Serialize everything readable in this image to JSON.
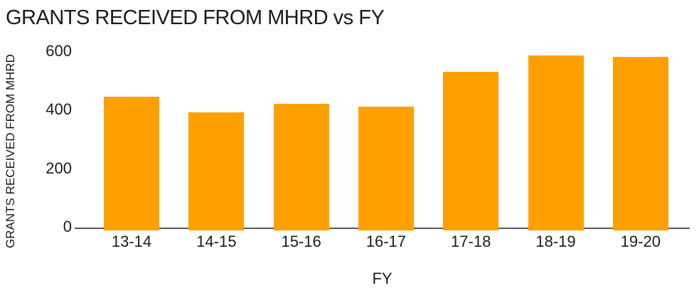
{
  "chart_data": {
    "type": "bar",
    "title": "GRANTS RECEIVED FROM MHRD vs FY",
    "xlabel": "FY",
    "ylabel": "GRANTS RECEIVED FROM MHRD",
    "categories": [
      "13-14",
      "14-15",
      "15-16",
      "16-17",
      "17-18",
      "18-19",
      "19-20"
    ],
    "values": [
      445,
      390,
      420,
      410,
      530,
      585,
      580
    ],
    "ylim": [
      0,
      600
    ],
    "yticks": [
      0,
      200,
      400,
      600
    ],
    "legend_position": "none",
    "grid": false,
    "colors": {
      "bar": "#FFA000",
      "axis_line": "#58585A",
      "text": "#1A1A1A"
    }
  }
}
